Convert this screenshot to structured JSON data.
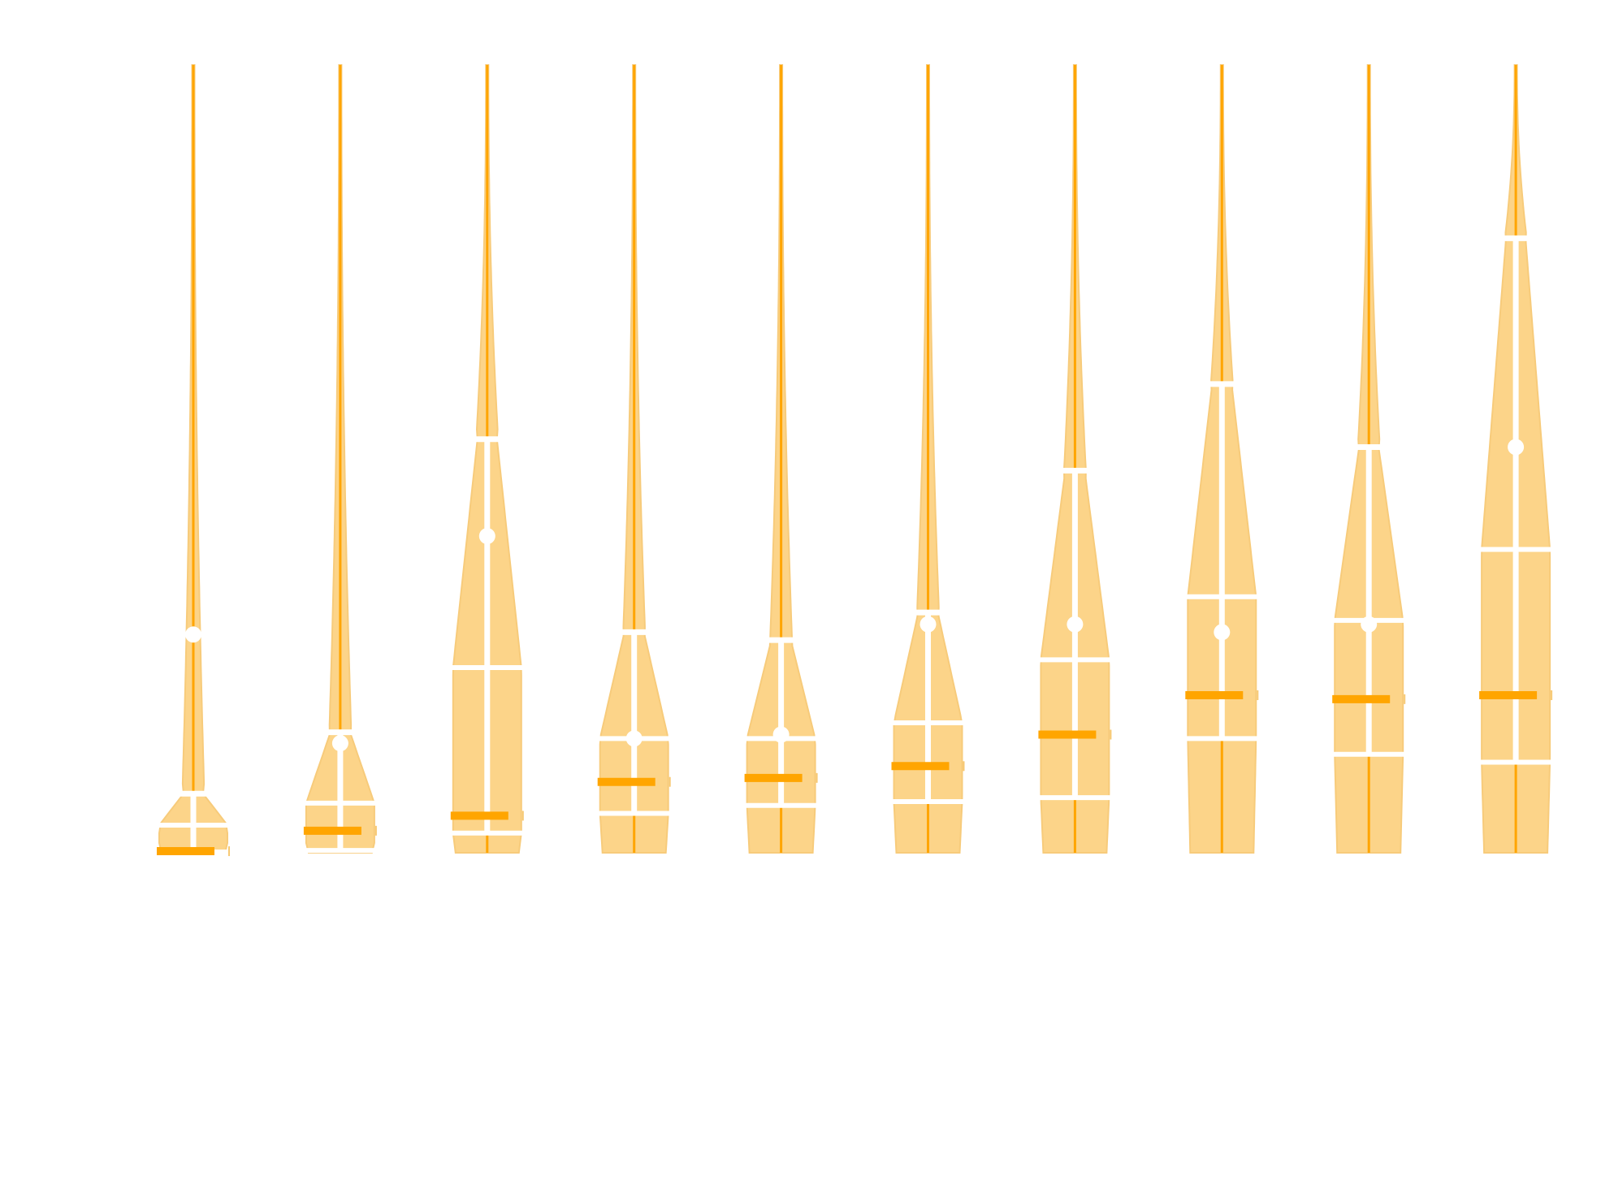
{
  "chart_data": {
    "type": "violin",
    "title": "",
    "xlabel": "",
    "ylabel": "",
    "ylim": [
      0,
      100
    ],
    "grid": false,
    "legend": "none",
    "colors": {
      "fill": "#fcd283",
      "line": "#ffa500",
      "marker": "#ffffff"
    },
    "violins": [
      {
        "index": 1,
        "max": 100,
        "p95": 7.5,
        "q3": 3.5,
        "median": 0.2,
        "mean": 27.7,
        "q1": 0.1,
        "p5": 0.0
      },
      {
        "index": 2,
        "max": 100,
        "p95": 15.3,
        "q3": 6.3,
        "median": 2.8,
        "mean": 13.9,
        "q1": 0.3,
        "p5": 0.0
      },
      {
        "index": 3,
        "max": 100,
        "p95": 52.5,
        "q3": 23.5,
        "median": 4.7,
        "mean": 40.2,
        "q1": 2.5,
        "p5": 0.0
      },
      {
        "index": 4,
        "max": 100,
        "p95": 28.0,
        "q3": 14.5,
        "median": 9.0,
        "mean": 14.5,
        "q1": 5.0,
        "p5": 0.0
      },
      {
        "index": 5,
        "max": 100,
        "p95": 27.0,
        "q3": 14.5,
        "median": 9.5,
        "mean": 15.0,
        "q1": 6.0,
        "p5": 0.0
      },
      {
        "index": 6,
        "max": 100,
        "p95": 30.5,
        "q3": 16.5,
        "median": 11.0,
        "mean": 29.0,
        "q1": 6.5,
        "p5": 0.0
      },
      {
        "index": 7,
        "max": 100,
        "p95": 48.5,
        "q3": 24.5,
        "median": 15.0,
        "mean": 29.0,
        "q1": 7.0,
        "p5": 0.0
      },
      {
        "index": 8,
        "max": 100,
        "p95": 59.5,
        "q3": 32.5,
        "median": 20.0,
        "mean": 28.0,
        "q1": 14.5,
        "p5": 0.0
      },
      {
        "index": 9,
        "max": 100,
        "p95": 51.5,
        "q3": 29.5,
        "median": 19.5,
        "mean": 29.0,
        "q1": 12.5,
        "p5": 0.0
      },
      {
        "index": 10,
        "max": 100,
        "p95": 78.0,
        "q3": 38.5,
        "median": 20.0,
        "mean": 51.5,
        "q1": 11.5,
        "p5": 0.0
      }
    ]
  }
}
